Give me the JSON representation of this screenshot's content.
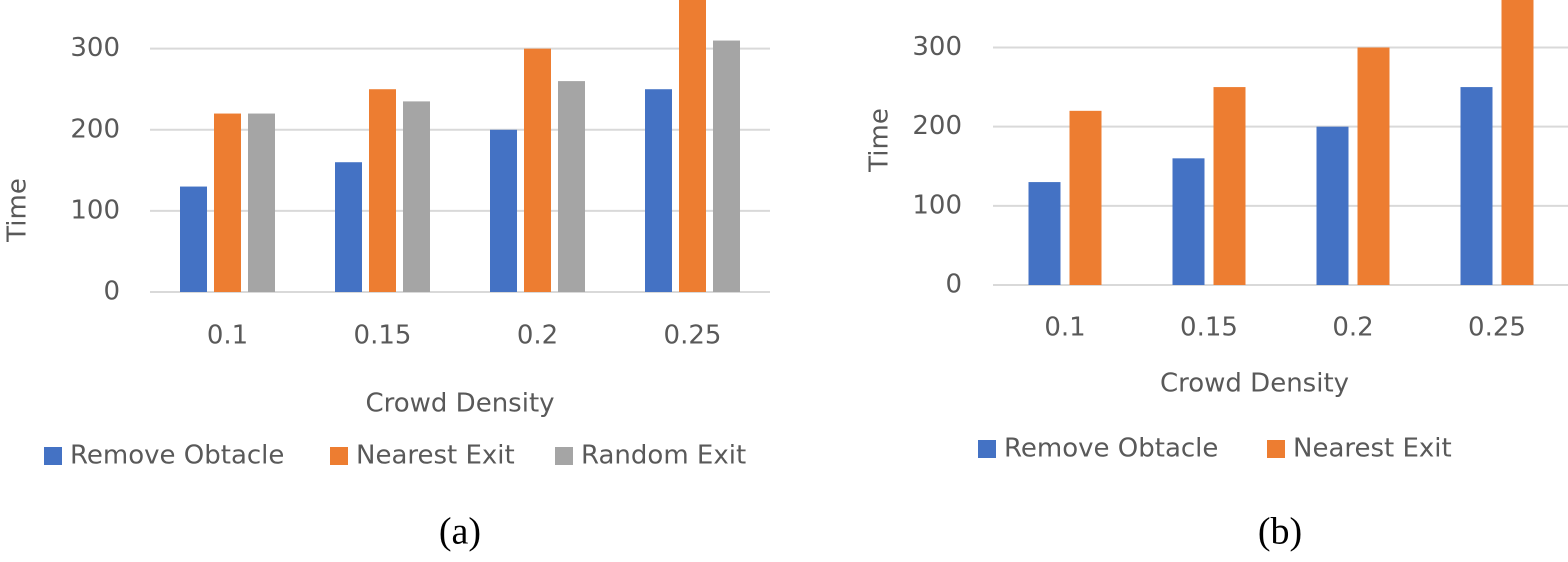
{
  "chart_data": [
    {
      "type": "bar",
      "caption": "(a)",
      "x_label": "Crowd Density",
      "y_label": "Time",
      "categories": [
        "0.1",
        "0.15",
        "0.2",
        "0.25"
      ],
      "series": [
        {
          "name": "Remove Obtacle",
          "color": "#4472c4",
          "values": [
            130,
            160,
            200,
            250
          ]
        },
        {
          "name": "Nearest Exit",
          "color": "#ed7d31",
          "values": [
            220,
            250,
            300,
            360
          ]
        },
        {
          "name": "Random Exit",
          "color": "#a5a5a5",
          "values": [
            220,
            235,
            260,
            310
          ]
        }
      ],
      "ylim": [
        0,
        360
      ],
      "yticks": [
        0,
        100,
        200,
        300
      ],
      "grid": true,
      "legend": "bottom"
    },
    {
      "type": "bar",
      "caption": "(b)",
      "x_label": "Crowd Density",
      "y_label": "Time",
      "categories": [
        "0.1",
        "0.15",
        "0.2",
        "0.25"
      ],
      "series": [
        {
          "name": "Remove Obtacle",
          "color": "#4472c4",
          "values": [
            130,
            160,
            200,
            250
          ]
        },
        {
          "name": "Nearest Exit",
          "color": "#ed7d31",
          "values": [
            220,
            250,
            300,
            360
          ]
        }
      ],
      "ylim": [
        0,
        360
      ],
      "yticks": [
        0,
        100,
        200,
        300
      ],
      "grid": true,
      "legend": "bottom"
    }
  ]
}
